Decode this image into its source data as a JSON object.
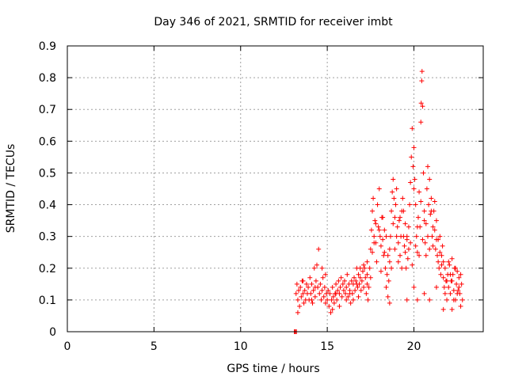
{
  "chart_data": {
    "type": "scatter",
    "title": "Day 346 of 2021, SRMTID for receiver imbt",
    "xlabel": "GPS time / hours",
    "ylabel": "SRMTID / TECUs",
    "xlim": [
      0,
      24
    ],
    "ylim": [
      0,
      0.9
    ],
    "xticks": [
      0,
      5,
      10,
      15,
      20
    ],
    "xtick_labels": [
      "0",
      "5",
      "10",
      "15",
      "20"
    ],
    "yticks": [
      0,
      0.1,
      0.2,
      0.3,
      0.4,
      0.5,
      0.6,
      0.7,
      0.8,
      0.9
    ],
    "ytick_labels": [
      "0",
      "0.1",
      "0.2",
      "0.3",
      "0.4",
      "0.5",
      "0.6",
      "0.7",
      "0.8",
      "0.9"
    ],
    "grid": true,
    "marker": "plus",
    "color": "#ff0000",
    "series": [
      {
        "name": "SRMTID",
        "points": [
          [
            13.1,
            0.0
          ],
          [
            13.15,
            0.0
          ],
          [
            13.2,
            0.0
          ],
          [
            13.22,
            0.0
          ],
          [
            13.2,
            0.12
          ],
          [
            13.25,
            0.15
          ],
          [
            13.3,
            0.1
          ],
          [
            13.35,
            0.13
          ],
          [
            13.4,
            0.08
          ],
          [
            13.45,
            0.14
          ],
          [
            13.5,
            0.11
          ],
          [
            13.55,
            0.16
          ],
          [
            13.6,
            0.12
          ],
          [
            13.65,
            0.09
          ],
          [
            13.7,
            0.13
          ],
          [
            13.75,
            0.1
          ],
          [
            13.8,
            0.15
          ],
          [
            13.85,
            0.12
          ],
          [
            13.9,
            0.14
          ],
          [
            13.95,
            0.1
          ],
          [
            14.0,
            0.17
          ],
          [
            14.05,
            0.12
          ],
          [
            14.1,
            0.15
          ],
          [
            14.15,
            0.09
          ],
          [
            14.2,
            0.13
          ],
          [
            14.25,
            0.2
          ],
          [
            14.3,
            0.11
          ],
          [
            14.35,
            0.16
          ],
          [
            14.4,
            0.21
          ],
          [
            14.45,
            0.14
          ],
          [
            14.5,
            0.26
          ],
          [
            14.55,
            0.12
          ],
          [
            14.6,
            0.15
          ],
          [
            14.65,
            0.1
          ],
          [
            14.7,
            0.13
          ],
          [
            14.75,
            0.17
          ],
          [
            14.8,
            0.11
          ],
          [
            14.85,
            0.14
          ],
          [
            14.9,
            0.18
          ],
          [
            14.95,
            0.12
          ],
          [
            15.0,
            0.1
          ],
          [
            15.05,
            0.13
          ],
          [
            15.1,
            0.08
          ],
          [
            15.15,
            0.12
          ],
          [
            15.2,
            0.06
          ],
          [
            15.25,
            0.1
          ],
          [
            15.3,
            0.14
          ],
          [
            15.35,
            0.11
          ],
          [
            15.4,
            0.09
          ],
          [
            15.45,
            0.12
          ],
          [
            15.5,
            0.15
          ],
          [
            15.55,
            0.1
          ],
          [
            15.6,
            0.13
          ],
          [
            15.65,
            0.16
          ],
          [
            15.7,
            0.12
          ],
          [
            15.75,
            0.14
          ],
          [
            15.8,
            0.17
          ],
          [
            15.85,
            0.11
          ],
          [
            15.9,
            0.15
          ],
          [
            15.95,
            0.13
          ],
          [
            16.0,
            0.16
          ],
          [
            16.05,
            0.12
          ],
          [
            16.1,
            0.14
          ],
          [
            16.15,
            0.18
          ],
          [
            16.2,
            0.11
          ],
          [
            16.25,
            0.15
          ],
          [
            16.3,
            0.13
          ],
          [
            16.35,
            0.09
          ],
          [
            16.4,
            0.16
          ],
          [
            16.45,
            0.12
          ],
          [
            16.5,
            0.15
          ],
          [
            16.55,
            0.17
          ],
          [
            16.6,
            0.13
          ],
          [
            16.65,
            0.16
          ],
          [
            16.7,
            0.2
          ],
          [
            16.75,
            0.14
          ],
          [
            16.8,
            0.18
          ],
          [
            16.85,
            0.15
          ],
          [
            16.9,
            0.17
          ],
          [
            16.95,
            0.13
          ],
          [
            17.0,
            0.16
          ],
          [
            17.05,
            0.19
          ],
          [
            17.1,
            0.14
          ],
          [
            17.15,
            0.2
          ],
          [
            17.2,
            0.17
          ],
          [
            17.25,
            0.12
          ],
          [
            17.3,
            0.15
          ],
          [
            17.35,
            0.1
          ],
          [
            17.4,
            0.14
          ],
          [
            17.45,
            0.2
          ],
          [
            17.5,
            0.26
          ],
          [
            17.55,
            0.32
          ],
          [
            17.6,
            0.38
          ],
          [
            17.65,
            0.42
          ],
          [
            17.7,
            0.3
          ],
          [
            17.75,
            0.35
          ],
          [
            17.8,
            0.28
          ],
          [
            17.85,
            0.22
          ],
          [
            17.9,
            0.4
          ],
          [
            17.95,
            0.33
          ],
          [
            18.0,
            0.45
          ],
          [
            18.05,
            0.3
          ],
          [
            18.1,
            0.27
          ],
          [
            18.15,
            0.36
          ],
          [
            18.2,
            0.29
          ],
          [
            18.25,
            0.24
          ],
          [
            18.3,
            0.32
          ],
          [
            18.35,
            0.2
          ],
          [
            18.4,
            0.14
          ],
          [
            18.45,
            0.18
          ],
          [
            18.5,
            0.11
          ],
          [
            18.55,
            0.16
          ],
          [
            18.6,
            0.22
          ],
          [
            18.65,
            0.3
          ],
          [
            18.7,
            0.38
          ],
          [
            18.75,
            0.44
          ],
          [
            18.8,
            0.48
          ],
          [
            18.85,
            0.42
          ],
          [
            18.9,
            0.36
          ],
          [
            18.95,
            0.4
          ],
          [
            19.0,
            0.45
          ],
          [
            19.05,
            0.33
          ],
          [
            19.1,
            0.28
          ],
          [
            19.15,
            0.35
          ],
          [
            19.2,
            0.24
          ],
          [
            19.25,
            0.3
          ],
          [
            19.3,
            0.38
          ],
          [
            19.35,
            0.42
          ],
          [
            19.4,
            0.3
          ],
          [
            19.45,
            0.27
          ],
          [
            19.5,
            0.25
          ],
          [
            19.55,
            0.2
          ],
          [
            19.6,
            0.29
          ],
          [
            19.65,
            0.23
          ],
          [
            19.7,
            0.33
          ],
          [
            19.75,
            0.4
          ],
          [
            19.8,
            0.47
          ],
          [
            19.85,
            0.55
          ],
          [
            19.9,
            0.64
          ],
          [
            19.95,
            0.52
          ],
          [
            20.0,
            0.58
          ],
          [
            20.05,
            0.48
          ],
          [
            20.1,
            0.4
          ],
          [
            20.15,
            0.3
          ],
          [
            20.2,
            0.25
          ],
          [
            20.25,
            0.36
          ],
          [
            20.3,
            0.44
          ],
          [
            20.35,
            0.33
          ],
          [
            20.4,
            0.66
          ],
          [
            20.42,
            0.72
          ],
          [
            20.45,
            0.79
          ],
          [
            20.47,
            0.82
          ],
          [
            20.5,
            0.71
          ],
          [
            20.55,
            0.5
          ],
          [
            20.6,
            0.38
          ],
          [
            20.65,
            0.28
          ],
          [
            20.7,
            0.24
          ],
          [
            20.75,
            0.45
          ],
          [
            20.8,
            0.52
          ],
          [
            20.85,
            0.4
          ],
          [
            20.9,
            0.48
          ],
          [
            20.95,
            0.37
          ],
          [
            21.0,
            0.42
          ],
          [
            21.05,
            0.3
          ],
          [
            21.1,
            0.27
          ],
          [
            21.15,
            0.38
          ],
          [
            21.2,
            0.32
          ],
          [
            21.25,
            0.26
          ],
          [
            21.3,
            0.29
          ],
          [
            21.35,
            0.24
          ],
          [
            21.4,
            0.22
          ],
          [
            21.45,
            0.2
          ],
          [
            21.5,
            0.25
          ],
          [
            21.55,
            0.18
          ],
          [
            21.6,
            0.21
          ],
          [
            21.65,
            0.27
          ],
          [
            21.7,
            0.17
          ],
          [
            21.75,
            0.14
          ],
          [
            21.8,
            0.12
          ],
          [
            21.85,
            0.16
          ],
          [
            21.9,
            0.1
          ],
          [
            21.95,
            0.18
          ],
          [
            22.0,
            0.14
          ],
          [
            22.05,
            0.21
          ],
          [
            22.1,
            0.12
          ],
          [
            22.15,
            0.16
          ],
          [
            22.2,
            0.23
          ],
          [
            22.25,
            0.18
          ],
          [
            22.3,
            0.13
          ],
          [
            22.35,
            0.2
          ],
          [
            22.4,
            0.1
          ],
          [
            22.45,
            0.15
          ],
          [
            22.5,
            0.19
          ],
          [
            22.55,
            0.13
          ],
          [
            22.6,
            0.17
          ],
          [
            22.65,
            0.12
          ],
          [
            22.7,
            0.18
          ],
          [
            22.75,
            0.15
          ],
          [
            17.6,
            0.25
          ],
          [
            17.8,
            0.34
          ],
          [
            18.0,
            0.32
          ],
          [
            18.2,
            0.36
          ],
          [
            18.4,
            0.3
          ],
          [
            18.6,
            0.26
          ],
          [
            18.8,
            0.34
          ],
          [
            19.0,
            0.3
          ],
          [
            19.2,
            0.36
          ],
          [
            19.4,
            0.38
          ],
          [
            19.6,
            0.3
          ],
          [
            19.8,
            0.28
          ],
          [
            20.0,
            0.45
          ],
          [
            20.2,
            0.33
          ],
          [
            20.4,
            0.41
          ],
          [
            20.6,
            0.35
          ],
          [
            20.8,
            0.3
          ],
          [
            21.0,
            0.38
          ],
          [
            21.2,
            0.41
          ],
          [
            21.4,
            0.29
          ],
          [
            21.6,
            0.24
          ],
          [
            21.8,
            0.2
          ],
          [
            22.0,
            0.22
          ],
          [
            22.2,
            0.16
          ],
          [
            22.4,
            0.2
          ],
          [
            22.6,
            0.14
          ],
          [
            17.3,
            0.22
          ],
          [
            17.7,
            0.28
          ],
          [
            18.1,
            0.19
          ],
          [
            18.3,
            0.25
          ],
          [
            18.5,
            0.24
          ],
          [
            18.7,
            0.2
          ],
          [
            18.9,
            0.26
          ],
          [
            19.1,
            0.22
          ],
          [
            19.3,
            0.2
          ],
          [
            19.5,
            0.34
          ],
          [
            19.7,
            0.26
          ],
          [
            19.9,
            0.21
          ],
          [
            20.1,
            0.27
          ],
          [
            20.3,
            0.24
          ],
          [
            20.5,
            0.29
          ],
          [
            20.7,
            0.34
          ],
          [
            20.9,
            0.26
          ],
          [
            21.1,
            0.33
          ],
          [
            21.3,
            0.35
          ],
          [
            21.5,
            0.3
          ],
          [
            21.7,
            0.22
          ],
          [
            21.9,
            0.16
          ],
          [
            22.1,
            0.18
          ],
          [
            22.3,
            0.1
          ],
          [
            22.5,
            0.12
          ],
          [
            22.7,
            0.08
          ],
          [
            16.3,
            0.12
          ],
          [
            16.5,
            0.1
          ],
          [
            16.7,
            0.15
          ],
          [
            16.9,
            0.2
          ],
          [
            17.1,
            0.21
          ],
          [
            17.3,
            0.18
          ],
          [
            17.5,
            0.17
          ],
          [
            14.3,
            0.14
          ],
          [
            14.7,
            0.2
          ],
          [
            14.9,
            0.09
          ],
          [
            15.3,
            0.07
          ],
          [
            15.7,
            0.08
          ],
          [
            16.1,
            0.1
          ],
          [
            13.3,
            0.06
          ],
          [
            13.6,
            0.16
          ],
          [
            14.1,
            0.1
          ],
          [
            15.5,
            0.12
          ],
          [
            16.8,
            0.11
          ],
          [
            18.6,
            0.09
          ],
          [
            19.6,
            0.1
          ],
          [
            20.0,
            0.14
          ],
          [
            20.2,
            0.1
          ],
          [
            20.6,
            0.12
          ],
          [
            20.9,
            0.1
          ],
          [
            21.3,
            0.14
          ],
          [
            21.7,
            0.07
          ],
          [
            22.2,
            0.07
          ],
          [
            22.8,
            0.1
          ]
        ]
      }
    ]
  }
}
